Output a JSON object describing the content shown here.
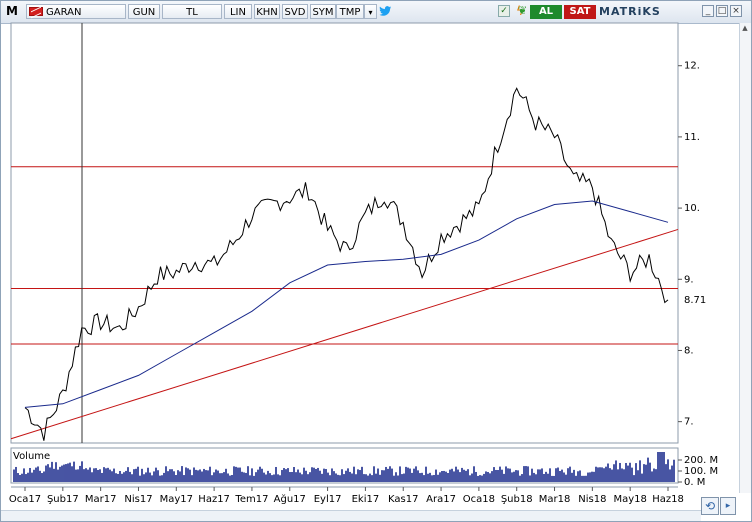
{
  "toolbar": {
    "logo": "M",
    "symbol": "GARAN",
    "period": "GUN",
    "currency": "TL",
    "scale": "LIN",
    "khn": "KHN",
    "svd": "SVD",
    "sym": "SYM",
    "tmp": "TMP",
    "dropdown": "▾",
    "al": "AL",
    "sat": "SAT",
    "brand": "MATRiKS",
    "icons": [
      "flag-icon",
      "twitter-icon",
      "checkbox-icon",
      "bolt-icon",
      "leaf-icon",
      "minimize-icon",
      "maximize-icon",
      "close-icon",
      "sync-icon"
    ]
  },
  "colors": {
    "price": "#000000",
    "ma": "#1a2a8c",
    "level": "#c41414",
    "trend": "#c41414",
    "volume": "#1a2a8c",
    "grid": "#b9b9b9"
  },
  "chart_data": {
    "type": "line",
    "symbol": "GARAN",
    "x": [
      "Oca17",
      "Şub17",
      "Mar17",
      "Nis17",
      "May17",
      "Haz17",
      "Tem17",
      "Ağu17",
      "Eyl17",
      "Eki17",
      "Kas17",
      "Ara17",
      "Oca18",
      "Şub18",
      "Mar18",
      "Nis18",
      "May18",
      "Haz18"
    ],
    "x_labels_shown": [
      "Oca17",
      "Şub17",
      "Mar17",
      "Nis17",
      "May17",
      "Haz17",
      "Tem17",
      "Ağu17",
      "Eyl17",
      "Eki17",
      "Kas17",
      "Ara17",
      "Oca18",
      "Şub18",
      "Mar18",
      "Nis18",
      "May18",
      "Haz18"
    ],
    "y_ticks": [
      "12.",
      "11.",
      "10.",
      "9.",
      "8.",
      "7."
    ],
    "y_tick_values": [
      12,
      11,
      10,
      9,
      8,
      7
    ],
    "ylim": [
      6.7,
      12.6
    ],
    "last_price_label": "8.71",
    "last_price": 8.71,
    "horizontal_levels": [
      10.58,
      8.87,
      8.09
    ],
    "trend_line": {
      "from": [
        "Oca17",
        6.76
      ],
      "to": [
        "Haz18",
        9.7
      ]
    },
    "price_series": [
      {
        "x": "Oca17",
        "y": 7.2
      },
      {
        "x": "Oca17b",
        "y": 6.85
      },
      {
        "x": "Şub17",
        "y": 7.4
      },
      {
        "x": "Şub17b",
        "y": 8.3
      },
      {
        "x": "Mar17",
        "y": 8.4
      },
      {
        "x": "Mar17b",
        "y": 8.3
      },
      {
        "x": "Nis17",
        "y": 8.6
      },
      {
        "x": "Nis17b",
        "y": 9.05
      },
      {
        "x": "May17",
        "y": 9.1
      },
      {
        "x": "May17b",
        "y": 9.25
      },
      {
        "x": "Haz17",
        "y": 9.2
      },
      {
        "x": "Haz17b",
        "y": 9.5
      },
      {
        "x": "Tem17",
        "y": 9.9
      },
      {
        "x": "Tem17b",
        "y": 10.05
      },
      {
        "x": "Ağu17",
        "y": 10.15
      },
      {
        "x": "Ağu17b",
        "y": 10.25
      },
      {
        "x": "Eyl17",
        "y": 9.7
      },
      {
        "x": "Eyl17b",
        "y": 9.4
      },
      {
        "x": "Eki17",
        "y": 9.9
      },
      {
        "x": "Eki17b",
        "y": 10.2
      },
      {
        "x": "Kas17",
        "y": 9.8
      },
      {
        "x": "Kas17b",
        "y": 9.1
      },
      {
        "x": "Ara17",
        "y": 9.6
      },
      {
        "x": "Ara17b",
        "y": 9.8
      },
      {
        "x": "Oca18",
        "y": 10.0
      },
      {
        "x": "Oca18b",
        "y": 10.9
      },
      {
        "x": "Şub18",
        "y": 11.7
      },
      {
        "x": "Şub18b",
        "y": 11.2
      },
      {
        "x": "Mar18",
        "y": 11.0
      },
      {
        "x": "Mar18b",
        "y": 10.4
      },
      {
        "x": "Nis18",
        "y": 10.3
      },
      {
        "x": "Nis18b",
        "y": 9.5
      },
      {
        "x": "May18",
        "y": 9.1
      },
      {
        "x": "May18b",
        "y": 9.3
      },
      {
        "x": "Haz18",
        "y": 8.71
      }
    ],
    "ma_series": [
      {
        "x": "Oca17",
        "y": 7.2
      },
      {
        "x": "Şub17",
        "y": 7.25
      },
      {
        "x": "Mar17",
        "y": 7.45
      },
      {
        "x": "Nis17",
        "y": 7.65
      },
      {
        "x": "May17",
        "y": 7.95
      },
      {
        "x": "Haz17",
        "y": 8.25
      },
      {
        "x": "Tem17",
        "y": 8.55
      },
      {
        "x": "Ağu17",
        "y": 8.95
      },
      {
        "x": "Eyl17",
        "y": 9.2
      },
      {
        "x": "Eki17",
        "y": 9.25
      },
      {
        "x": "Kas17",
        "y": 9.28
      },
      {
        "x": "Ara17",
        "y": 9.35
      },
      {
        "x": "Oca18",
        "y": 9.55
      },
      {
        "x": "Şub18",
        "y": 9.85
      },
      {
        "x": "Mar18",
        "y": 10.05
      },
      {
        "x": "Nis18",
        "y": 10.1
      },
      {
        "x": "May18",
        "y": 9.95
      },
      {
        "x": "Haz18",
        "y": 9.8
      }
    ],
    "volume": {
      "label": "Volume",
      "y_ticks": [
        "200. M",
        "100. M",
        "0. M"
      ],
      "y_tick_values": [
        200,
        100,
        0
      ],
      "unit": "M"
    }
  }
}
